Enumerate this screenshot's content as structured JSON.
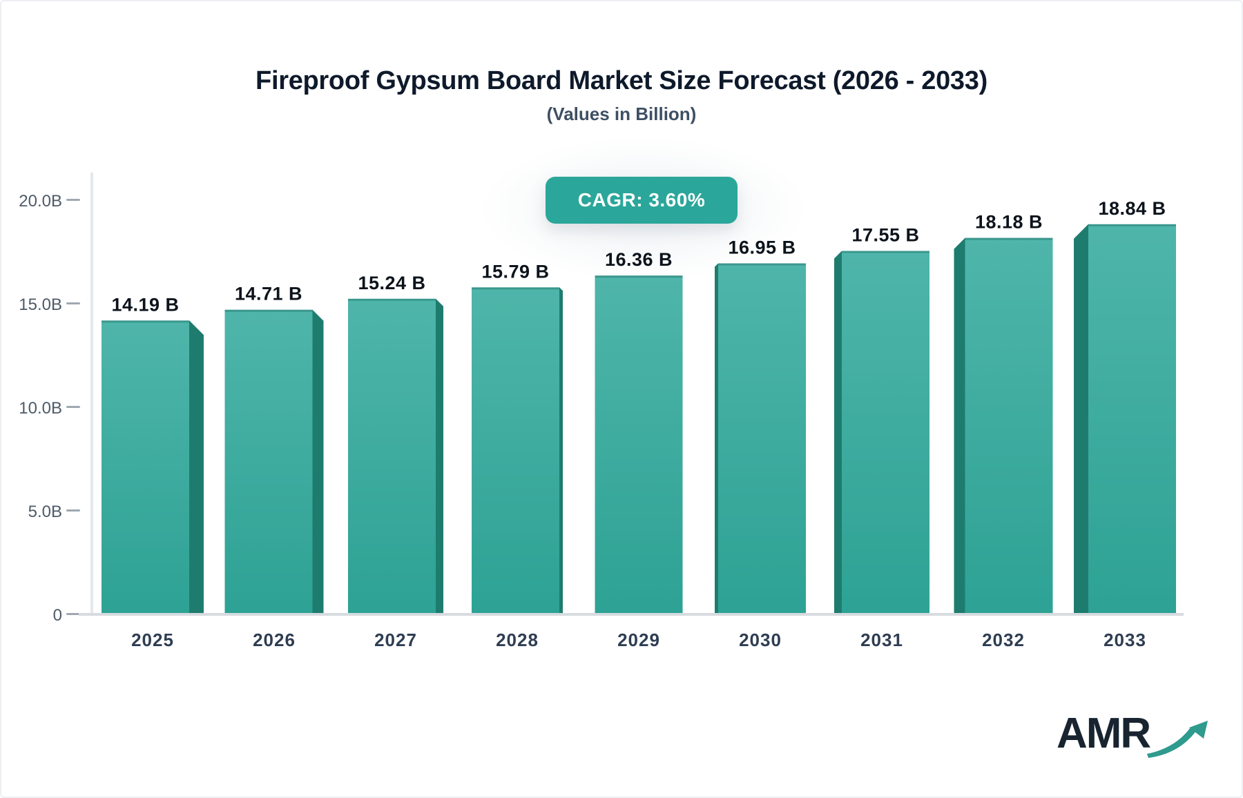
{
  "header": {
    "title": "Fireproof Gypsum Board Market Size Forecast (2026 - 2033)",
    "subtitle": "(Values in Billion)"
  },
  "badge": {
    "label": "CAGR: 3.60%"
  },
  "logo": {
    "text": "AMR",
    "arrow_icon": "growth-arrow-icon"
  },
  "colors": {
    "bar_face_top": "#4fb5aa",
    "bar_face_bottom": "#2da294",
    "bar_side": "#1e7c6f",
    "badge_bg": "#2ba69a",
    "badge_text": "#ffffff",
    "axis_line": "#e4e7eb",
    "baseline": "#d7dbe0",
    "tick_dash": "#9fa8b2",
    "y_label": "#4e5a68",
    "x_label": "#2e3d52",
    "value_label": "#0c131b",
    "title_text": "#0e1a2b",
    "subtitle_text": "#3e4f64",
    "logo_navy": "#182430",
    "logo_arrow": "#2f9a8e"
  },
  "chart_data": {
    "type": "bar",
    "title": "Fireproof Gypsum Board Market Size Forecast (2026 - 2033)",
    "subtitle": "(Values in Billion)",
    "cagr": "3.60%",
    "unit": "Billion",
    "categories": [
      "2025",
      "2026",
      "2027",
      "2028",
      "2029",
      "2030",
      "2031",
      "2032",
      "2033"
    ],
    "values": [
      14.19,
      14.71,
      15.24,
      15.79,
      16.36,
      16.95,
      17.55,
      18.18,
      18.84
    ],
    "value_labels": [
      "14.19 B",
      "14.71 B",
      "15.24 B",
      "15.79 B",
      "16.36 B",
      "16.95 B",
      "17.55 B",
      "18.18 B",
      "18.84 B"
    ],
    "ylim": [
      0,
      20
    ],
    "yticks": [
      {
        "value": 20,
        "label": "20.0B"
      },
      {
        "value": 15,
        "label": "15.0B"
      },
      {
        "value": 10,
        "label": "10.0B"
      },
      {
        "value": 5,
        "label": "5.0B"
      },
      {
        "value": 0,
        "label": "0"
      }
    ],
    "grid": false,
    "legend": "none",
    "style": "3d-perspective-bars, side faces angled toward center bar"
  }
}
